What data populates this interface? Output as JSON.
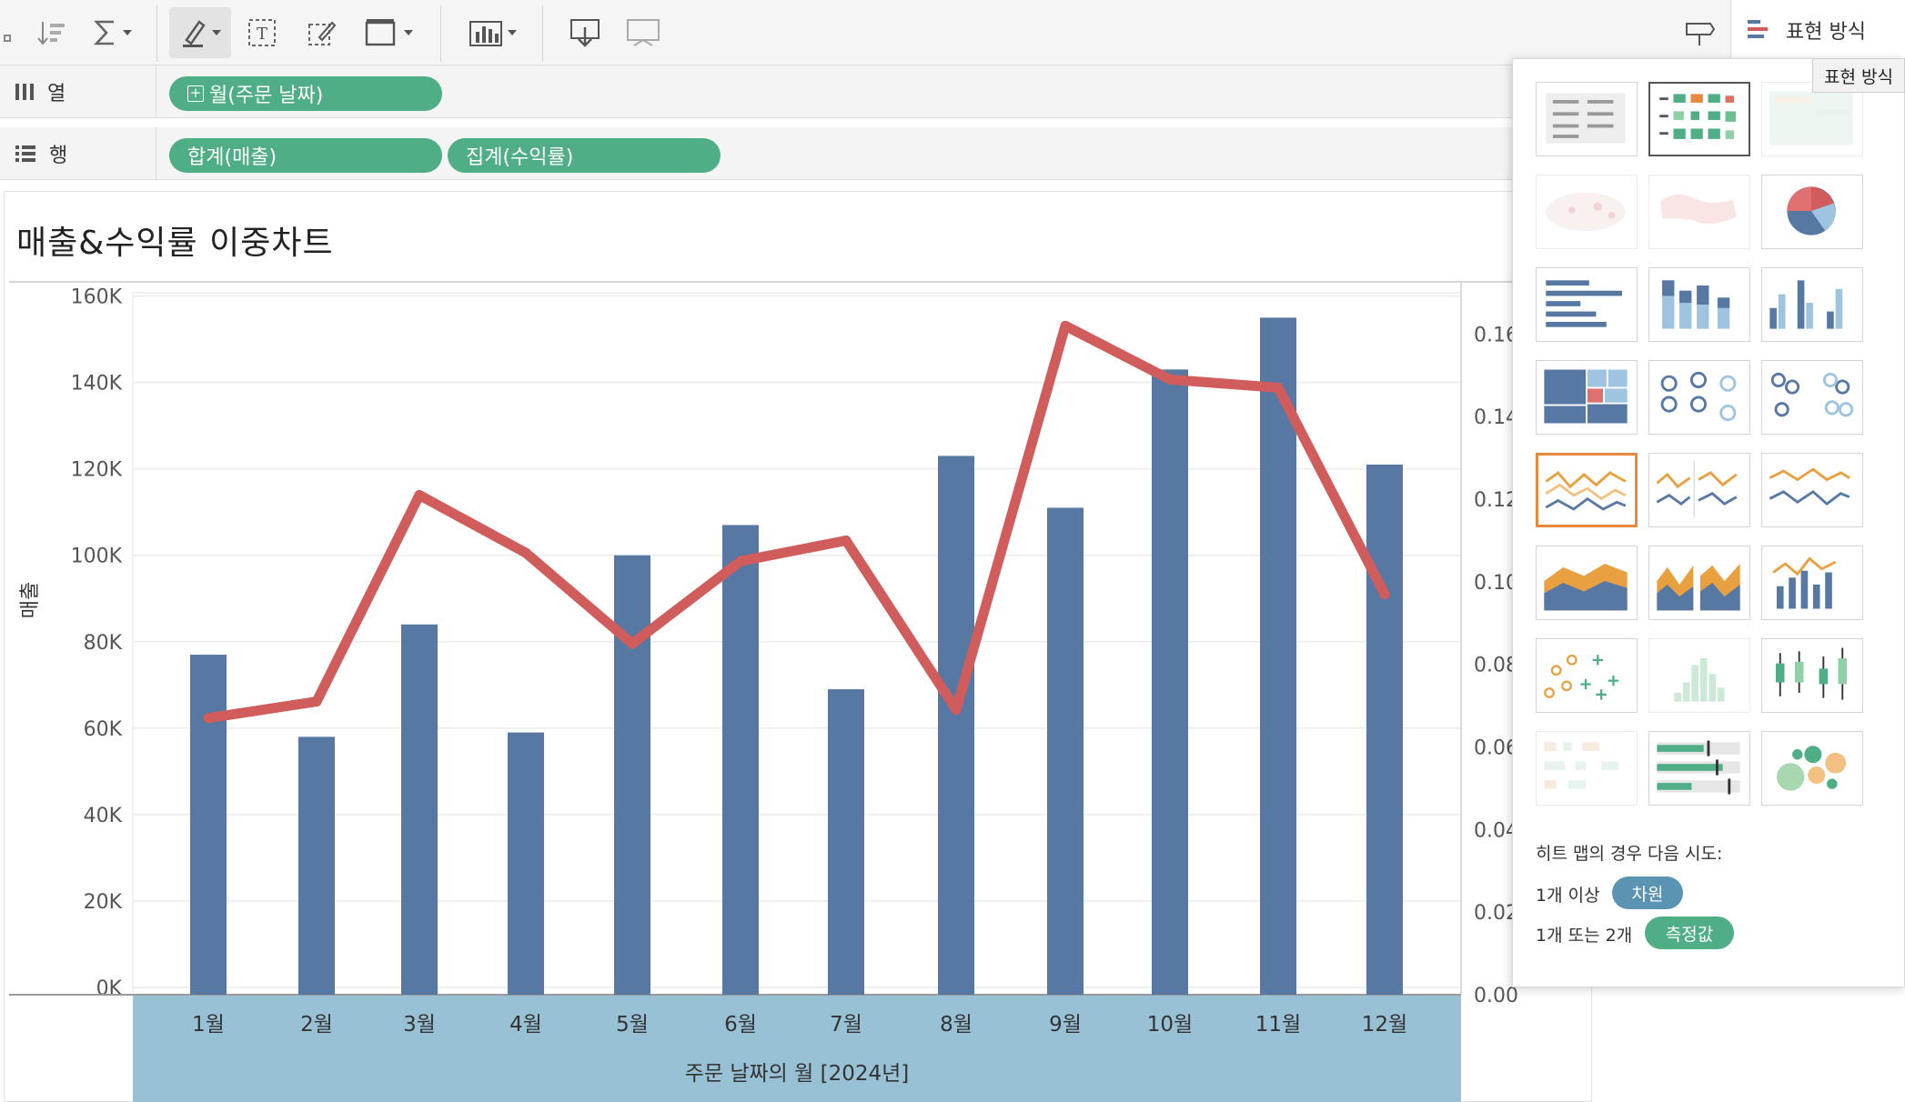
{
  "toolbar": {
    "showme_label": "표현 방식",
    "tooltip": "표현 방식"
  },
  "shelves": {
    "columns": {
      "label": "열",
      "pills": [
        "월(주문 날짜)"
      ]
    },
    "rows": {
      "label": "행",
      "pills": [
        "합계(매출)",
        "집계(수익률)"
      ]
    }
  },
  "colors": {
    "bar": "#5878a4",
    "line": "#d15c5c",
    "pill": "#4fae86",
    "axis_band": "#99c1d5",
    "dimension_tag": "#5b93b2",
    "measure_tag": "#4fae86",
    "selected_thumb": "#e8893d"
  },
  "chart": {
    "title": "매출&수익률 이중차트"
  },
  "chart_data": {
    "type": "bar",
    "title": "매출&수익률 이중차트",
    "categories": [
      "1월",
      "2월",
      "3월",
      "4월",
      "5월",
      "6월",
      "7월",
      "8월",
      "9월",
      "10월",
      "11월",
      "12월"
    ],
    "xlabel": "주문 날짜의 월 [2024년]",
    "ylabel": "매출",
    "ylim": [
      0,
      160000
    ],
    "y_ticks": [
      "0K",
      "20K",
      "40K",
      "60K",
      "80K",
      "100K",
      "120K",
      "140K",
      "160K"
    ],
    "y2_ticks": [
      "0.00",
      "0.02",
      "0.04",
      "0.06",
      "0.08",
      "0.10",
      "0.12",
      "0.14",
      "0.16"
    ],
    "y2lim": [
      0,
      0.17
    ],
    "series": [
      {
        "type": "bar",
        "values": [
          77000,
          58000,
          84000,
          59000,
          100000,
          107000,
          69000,
          123000,
          111000,
          143000,
          155000,
          121000
        ]
      },
      {
        "type": "line",
        "axis": "right",
        "values": [
          0.067,
          0.071,
          0.121,
          0.107,
          0.085,
          0.105,
          0.11,
          0.069,
          0.162,
          0.149,
          0.147,
          0.097
        ]
      }
    ],
    "grid": true
  },
  "showme": {
    "hint_title": "히트 맵의 경우 다음 시도:",
    "hint_line1": "1개 이상",
    "hint_tag1": "차원",
    "hint_line2": "1개 또는 2개",
    "hint_tag2": "측정값"
  }
}
